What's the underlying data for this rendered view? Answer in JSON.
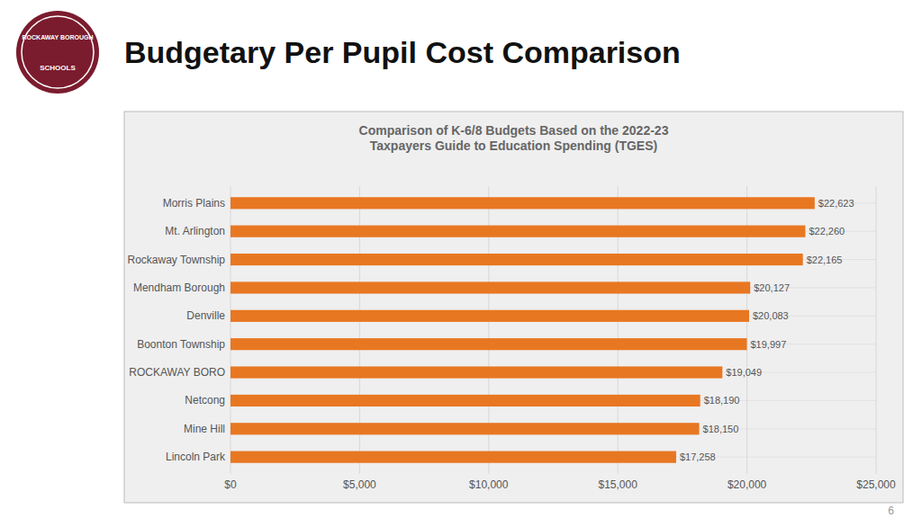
{
  "chart_data": {
    "type": "bar",
    "orientation": "horizontal",
    "title": "Budgetary Per Pupil Cost Comparison",
    "subtitle": "Comparison of K-6/8 Budgets Based on the 2022-23\nTaxpayers Guide to Education Spending (TGES)",
    "annotations": [
      "ROCKAWAY BOROUGH",
      "SCHOOLS",
      "6"
    ],
    "categories": [
      "Lincoln Park",
      "Mine Hill",
      "Netcong",
      "ROCKAWAY BORO",
      "Boonton Township",
      "Denville",
      "Mendham Borough",
      "Rockaway Township",
      "Mt. Arlington",
      "Morris Plains"
    ],
    "values": [
      17258,
      18150,
      18190,
      19049,
      19997,
      20083,
      20127,
      22165,
      22260,
      22623
    ],
    "value_labels": [
      "$17,258",
      "$18,150",
      "$18,190",
      "$19,049",
      "$19,997",
      "$20,083",
      "$20,127",
      "$22,165",
      "$22,260",
      "$22,623"
    ],
    "data_labels": true,
    "color": "#E87722",
    "xlim": [
      0,
      25000
    ],
    "xticks": [
      {
        "value": 0,
        "label": "$0"
      },
      {
        "value": 5000,
        "label": "$5,000"
      },
      {
        "value": 10000,
        "label": "$10,000"
      },
      {
        "value": 15000,
        "label": "$15,000"
      },
      {
        "value": 20000,
        "label": "$20,000"
      },
      {
        "value": 25000,
        "label": "$25,000"
      }
    ],
    "grid": true
  }
}
